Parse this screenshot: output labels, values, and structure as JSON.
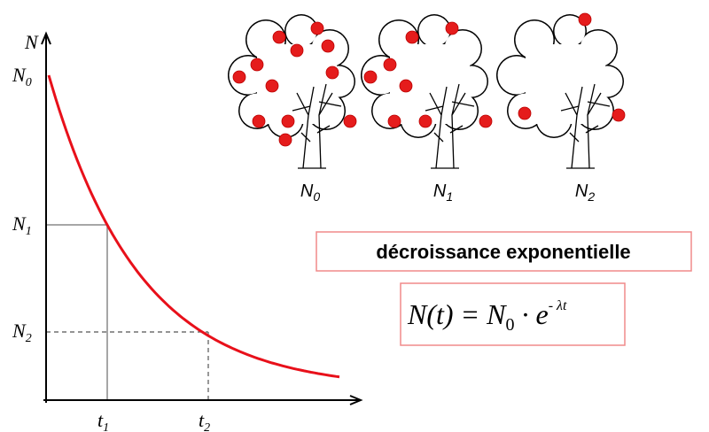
{
  "graph": {
    "y_axis_label": "N",
    "x_axis_label": "",
    "y_levels": [
      {
        "base": "N",
        "sub": "0"
      },
      {
        "base": "N",
        "sub": "1"
      },
      {
        "base": "N",
        "sub": "2"
      }
    ],
    "x_levels": [
      {
        "base": "t",
        "sub": "1"
      },
      {
        "base": "t",
        "sub": "2"
      }
    ]
  },
  "trees": [
    {
      "base": "N",
      "sub": "0"
    },
    {
      "base": "N",
      "sub": "1"
    },
    {
      "base": "N",
      "sub": "2"
    }
  ],
  "title_box": "décroissance exponentielle",
  "formula": {
    "lhs": "N(t) = N",
    "sub": "0",
    "mid": " · e",
    "sup": "- λt"
  }
}
